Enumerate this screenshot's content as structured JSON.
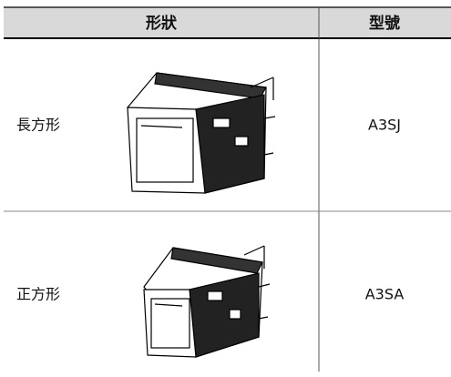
{
  "table": {
    "header": [
      "形狀",
      "型號"
    ],
    "rows": [
      [
        "長方形",
        "A3SJ"
      ],
      [
        "正方形",
        "A3SA"
      ]
    ]
  }
}
